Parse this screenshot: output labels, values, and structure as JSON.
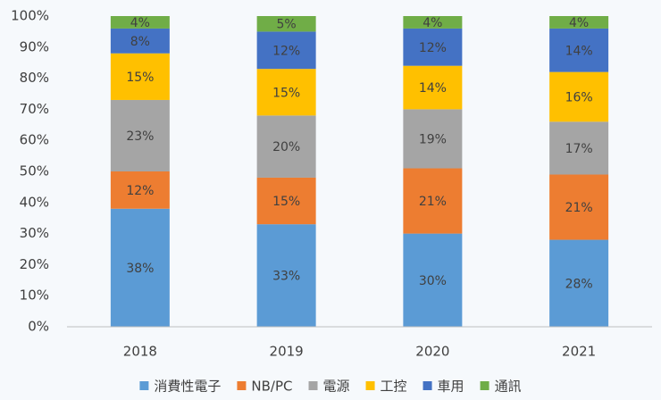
{
  "chart_data": {
    "type": "stacked_bar",
    "categories": [
      "2018",
      "2019",
      "2020",
      "2021"
    ],
    "series": [
      {
        "name": "消費性電子",
        "color": "#5b9bd5",
        "values": [
          38,
          33,
          30,
          28
        ],
        "value_labels": [
          "38%",
          "33%",
          "30%",
          "28%"
        ]
      },
      {
        "name": "NB/PC",
        "color": "#ed7d31",
        "values": [
          12,
          15,
          21,
          21
        ],
        "value_labels": [
          "12%",
          "15%",
          "21%",
          "21%"
        ]
      },
      {
        "name": "電源",
        "color": "#a5a5a5",
        "values": [
          23,
          20,
          19,
          17
        ],
        "value_labels": [
          "23%",
          "20%",
          "19%",
          "17%"
        ]
      },
      {
        "name": "工控",
        "color": "#ffc000",
        "values": [
          15,
          15,
          14,
          16
        ],
        "value_labels": [
          "15%",
          "15%",
          "14%",
          "16%"
        ]
      },
      {
        "name": "車用",
        "color": "#4472c4",
        "values": [
          8,
          12,
          12,
          14
        ],
        "value_labels": [
          "8%",
          "12%",
          "12%",
          "14%"
        ]
      },
      {
        "name": "通訊",
        "color": "#70ad47",
        "values": [
          4,
          5,
          4,
          4
        ],
        "value_labels": [
          "4%",
          "5%",
          "4%",
          "4%"
        ]
      }
    ],
    "ylim": [
      0,
      100
    ],
    "yticks": [
      {
        "value": 0,
        "label": "0%"
      },
      {
        "value": 10,
        "label": "10%"
      },
      {
        "value": 20,
        "label": "20%"
      },
      {
        "value": 30,
        "label": "30%"
      },
      {
        "value": 40,
        "label": "40%"
      },
      {
        "value": 50,
        "label": "50%"
      },
      {
        "value": 60,
        "label": "60%"
      },
      {
        "value": 70,
        "label": "70%"
      },
      {
        "value": 80,
        "label": "80%"
      },
      {
        "value": 90,
        "label": "90%"
      },
      {
        "value": 100,
        "label": "100%"
      }
    ],
    "grid": false,
    "legend": "bottom"
  }
}
